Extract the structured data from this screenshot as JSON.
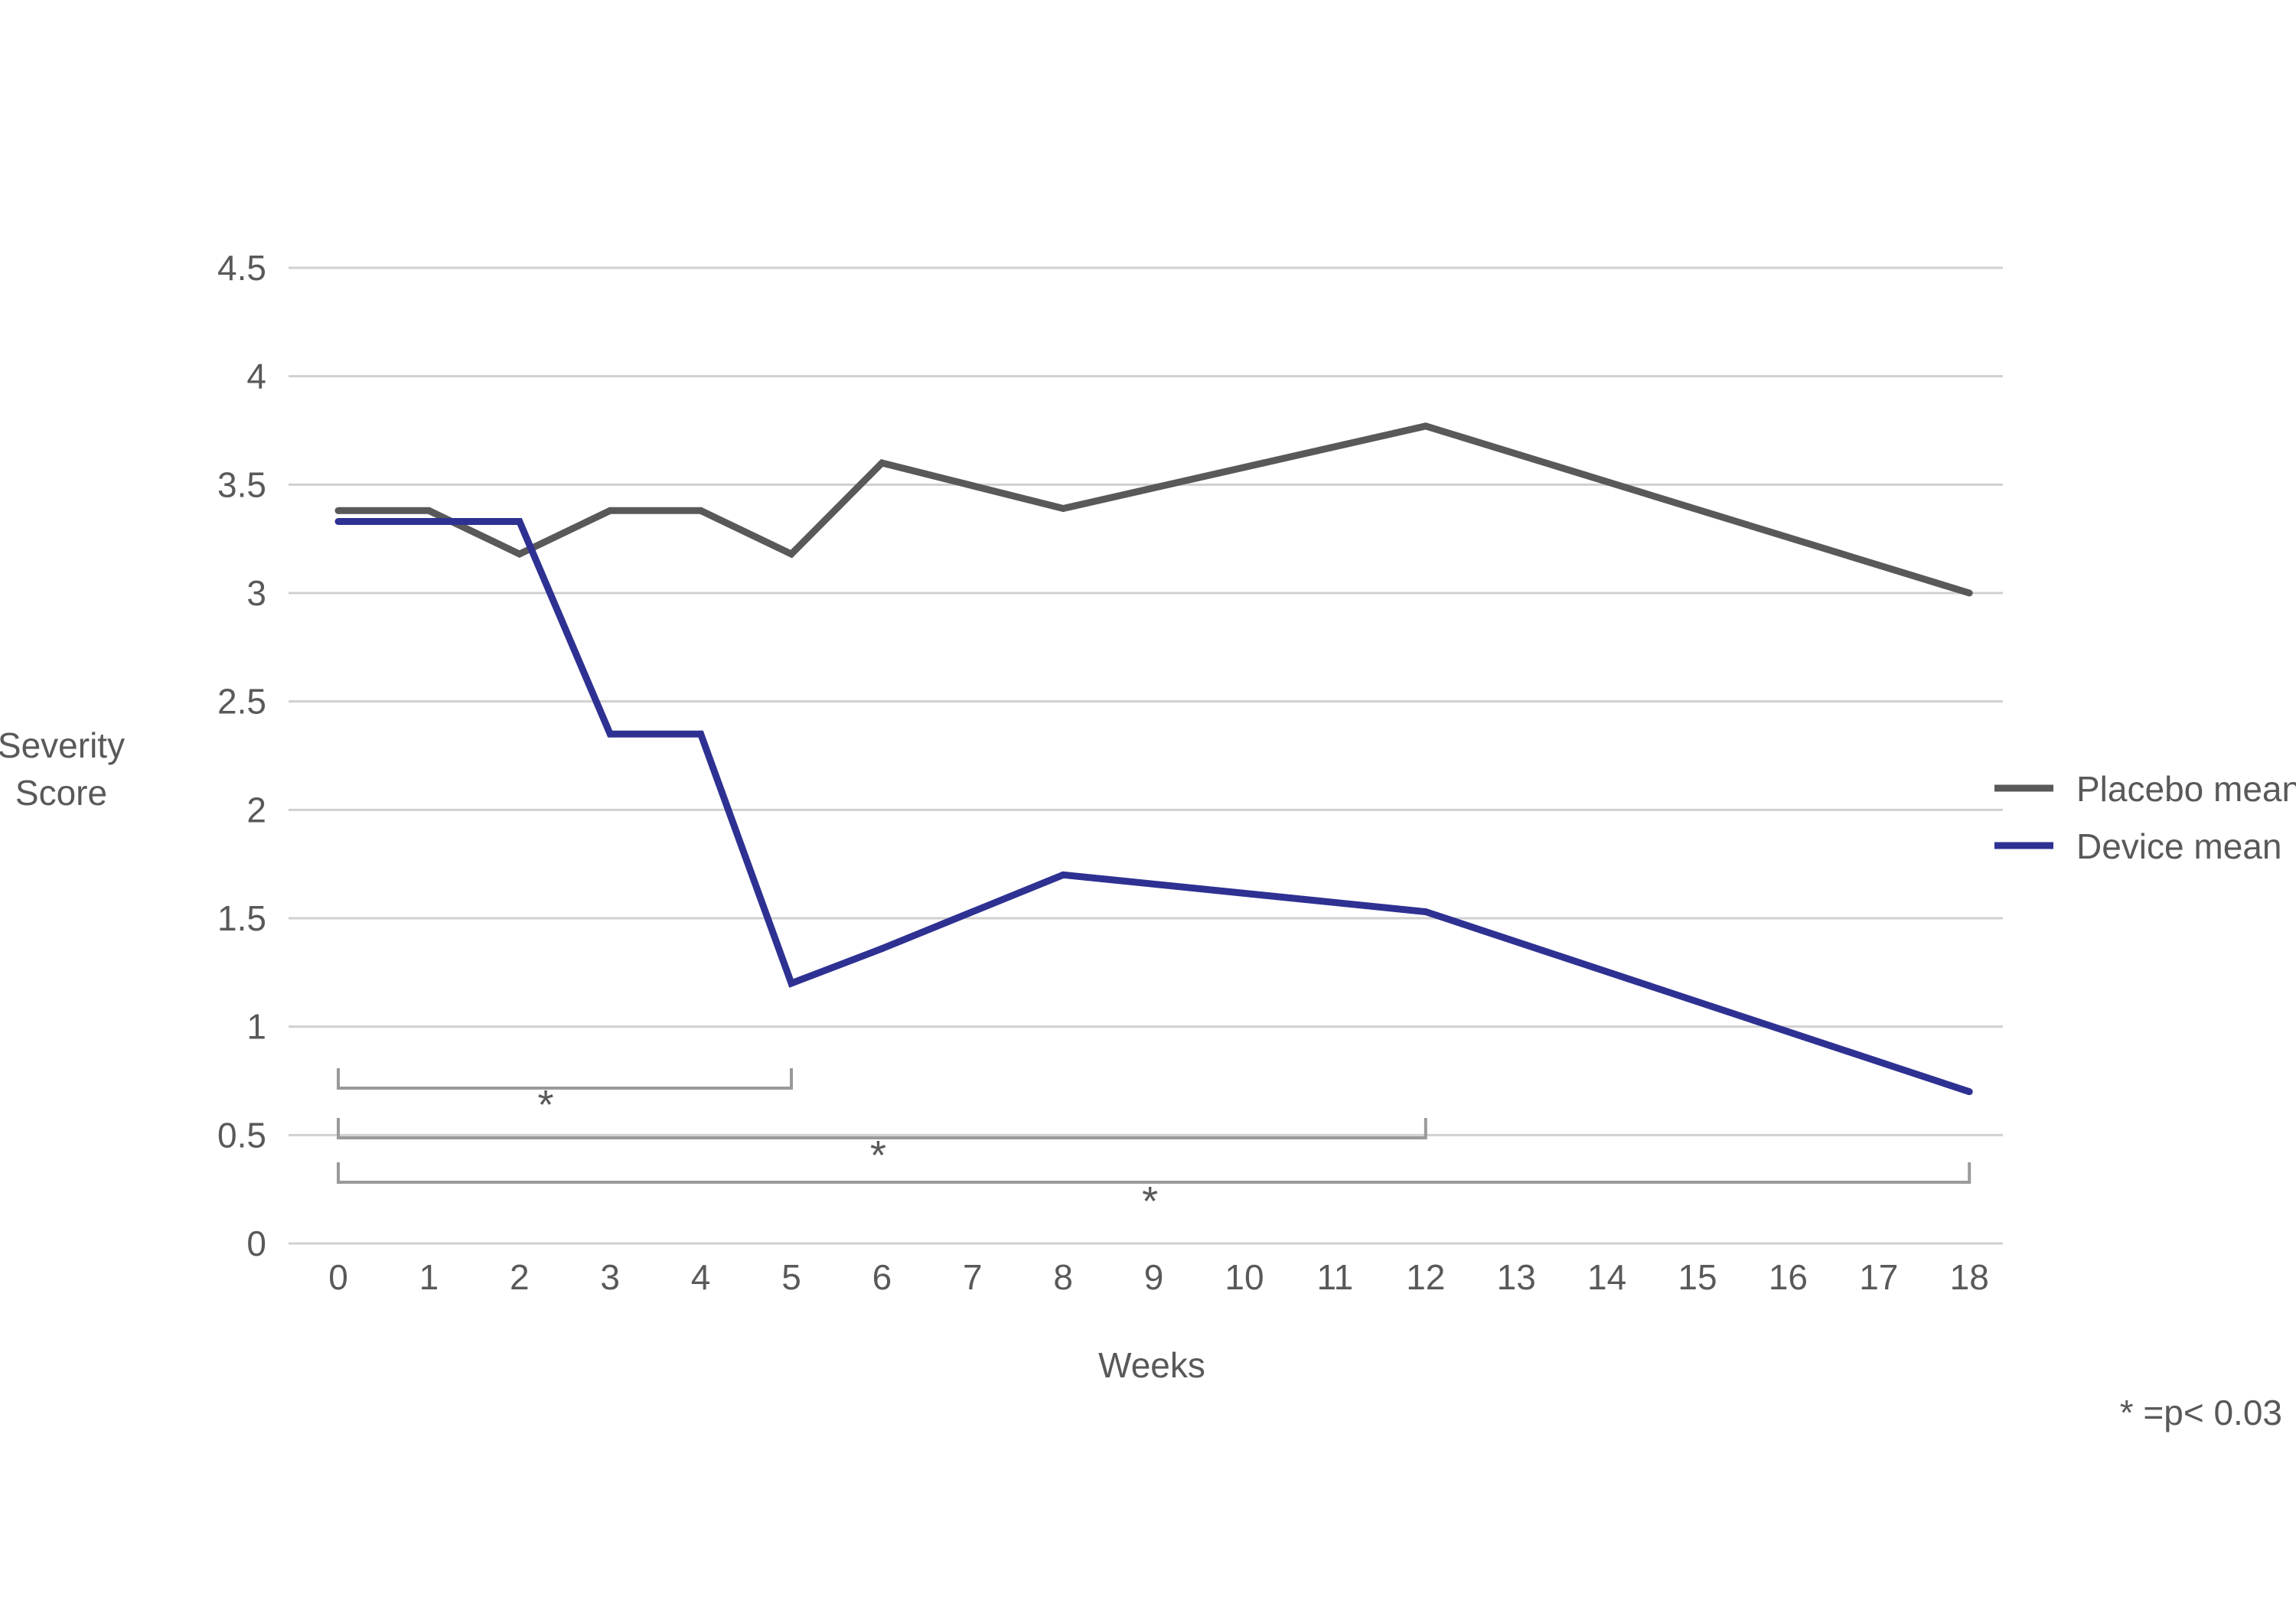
{
  "chart_data": {
    "type": "line",
    "title": "",
    "xlabel": "Weeks",
    "ylabel_lines": [
      "Severity",
      "Score"
    ],
    "x": [
      0,
      1,
      2,
      3,
      4,
      5,
      6,
      8,
      12,
      18
    ],
    "x_tick_labels": [
      "0",
      "1",
      "2",
      "3",
      "4",
      "5",
      "6",
      "7",
      "8",
      "9",
      "10",
      "11",
      "12",
      "13",
      "14",
      "15",
      "16",
      "17",
      "18"
    ],
    "y_tick_labels": [
      "0",
      "0.5",
      "1",
      "1.5",
      "2",
      "2.5",
      "3",
      "3.5",
      "4",
      "4.5"
    ],
    "ylim": [
      0,
      4.5
    ],
    "grid": true,
    "legend_position": "right",
    "series": [
      {
        "name": "Placebo mean",
        "color": "#595959",
        "values": [
          3.38,
          3.38,
          3.18,
          3.38,
          3.38,
          3.18,
          3.6,
          3.39,
          3.77,
          3.0
        ]
      },
      {
        "name": "Device mean",
        "color": "#2e3192",
        "values": [
          3.33,
          3.33,
          3.33,
          2.35,
          2.35,
          1.2,
          1.36,
          1.7,
          1.53,
          0.7
        ]
      }
    ],
    "significance_brackets": [
      {
        "from": 0,
        "to": 5,
        "label": "*"
      },
      {
        "from": 0,
        "to": 12,
        "label": "*"
      },
      {
        "from": 0,
        "to": 18,
        "label": "*"
      }
    ],
    "footnote": "* =p< 0.03"
  }
}
